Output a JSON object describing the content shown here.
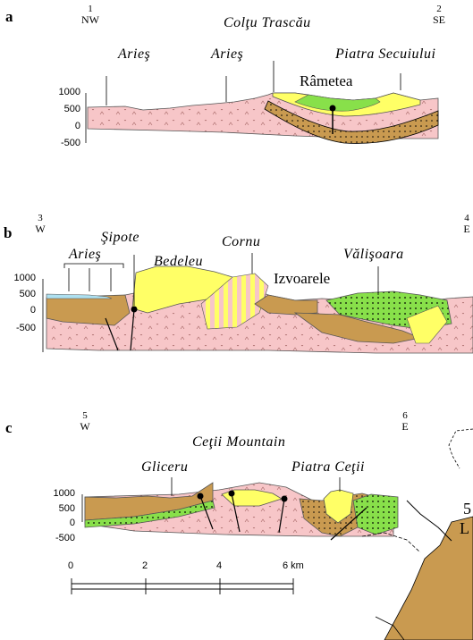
{
  "panels": [
    {
      "letter": "a",
      "left_end": {
        "num": "1",
        "dir": "NW"
      },
      "right_end": {
        "num": "2",
        "dir": "SE"
      },
      "places_italic": [
        "Arieş",
        "Arieş",
        "Colţu Trascău",
        "Piatra Secuiului"
      ],
      "places_upright": [
        "Râmetea"
      ],
      "yticks": [
        "1000",
        "500",
        "0",
        "-500"
      ]
    },
    {
      "letter": "b",
      "left_end": {
        "num": "3",
        "dir": "W"
      },
      "right_end": {
        "num": "4",
        "dir": "E"
      },
      "places_italic": [
        "Arieş",
        "Şipote",
        "Bedeleu",
        "Cornu",
        "Vălişoara"
      ],
      "places_upright": [
        "Izvoarele"
      ],
      "yticks": [
        "1000",
        "500",
        "0",
        "-500"
      ]
    },
    {
      "letter": "c",
      "left_end": {
        "num": "5",
        "dir": "W"
      },
      "right_end": {
        "num": "6",
        "dir": "E"
      },
      "places_italic": [
        "Ceţii Mountain",
        "Gliceru",
        "Piatra Ceţii"
      ],
      "places_upright": [],
      "yticks": [
        "1000",
        "500",
        "0",
        "-500"
      ]
    }
  ],
  "scale": {
    "ticks": [
      "0",
      "2",
      "4",
      "6 km"
    ]
  },
  "map_fragment": {
    "labels": [
      "5",
      "L"
    ]
  },
  "colors": {
    "basement": "#f7c6c8",
    "sediment_brown": "#c99a50",
    "sediment_dark": "#b8843a",
    "yellow": "#ffff66",
    "green": "#88e04a",
    "water": "#aee0f0"
  }
}
